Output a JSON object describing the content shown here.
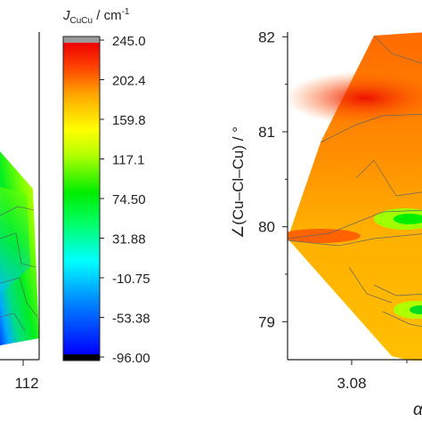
{
  "chart_data": [
    {
      "type": "heatmap",
      "panel": "left",
      "cropped": true,
      "x_tick_labels_visible": [
        "112"
      ]
    },
    {
      "type": "colorbar",
      "title_main": "J",
      "title_sub": "CuCu",
      "title_unit": " / cm",
      "title_exp": "-1",
      "tick_labels": [
        "245.0",
        "202.4",
        "159.8",
        "117.1",
        "74.50",
        "31.88",
        "-10.75",
        "-53.38",
        "-96.00"
      ],
      "range": [
        -96.0,
        245.0
      ],
      "colors": [
        "#000000",
        "#0000ff",
        "#00b4ff",
        "#00ffff",
        "#00ff66",
        "#00ee00",
        "#b4ff00",
        "#ffff00",
        "#ffaa00",
        "#ff5500",
        "#ff0000",
        "#e00000",
        "#999999"
      ]
    },
    {
      "type": "heatmap",
      "panel": "right",
      "ylabel": "∠(Cu–Cl–Cu) / °",
      "y_ticks": [
        79,
        80,
        81,
        82
      ],
      "ylim": [
        78.6,
        82.05
      ],
      "x_ticks": [
        3.08
      ],
      "xlabel_partial": "α"
    }
  ]
}
